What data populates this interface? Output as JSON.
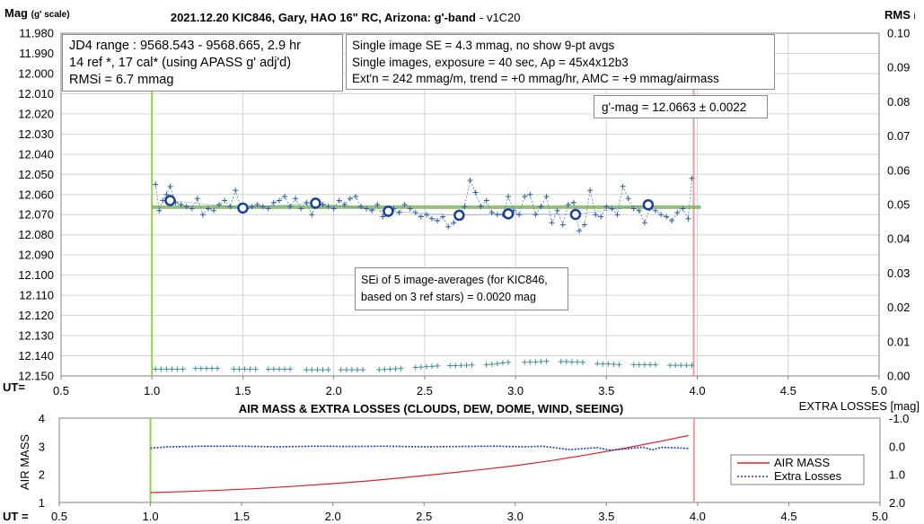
{
  "chart_data": [
    {
      "type": "scatter",
      "title": "2021.12.20 KIC846, Gary, HAO 16\" RC, Arizona: g'-band",
      "title_suffix": "- v1C20",
      "ylabel": "Mag",
      "ylabel_suffix": "(g' scale)",
      "y2label": "RMS",
      "y2label_suffix": "i",
      "xlabel": "UT=",
      "xlim": [
        0.5,
        5.0
      ],
      "ylim": [
        11.98,
        12.15
      ],
      "y_reversed": true,
      "y2lim": [
        0.0,
        0.1
      ],
      "grid": true,
      "x_ticks": [
        "0.5",
        "1.0",
        "1.5",
        "2.0",
        "2.5",
        "3.0",
        "3.5",
        "4.0",
        "4.5",
        "5.0"
      ],
      "y_ticks": [
        "11.980",
        "11.990",
        "12.000",
        "12.010",
        "12.020",
        "12.030",
        "12.040",
        "12.050",
        "12.060",
        "12.070",
        "12.080",
        "12.090",
        "12.100",
        "12.110",
        "12.120",
        "12.130",
        "12.140",
        "12.150"
      ],
      "y2_ticks": [
        "0.10",
        "0.09",
        "0.08",
        "0.07",
        "0.06",
        "0.05",
        "0.04",
        "0.03",
        "0.02",
        "0.01",
        "0.00"
      ],
      "vlines": [
        {
          "x": 1.0,
          "color": "#92d050"
        },
        {
          "x": 3.98,
          "color": "#e6a0a0"
        }
      ],
      "fit_line": {
        "x": [
          1.0,
          4.02
        ],
        "y": [
          12.0663,
          12.0663
        ],
        "color": "#70ad47"
      },
      "series": [
        {
          "name": "single images",
          "x": [
            1.02,
            1.04,
            1.06,
            1.08,
            1.1,
            1.13,
            1.16,
            1.19,
            1.22,
            1.25,
            1.28,
            1.31,
            1.34,
            1.37,
            1.4,
            1.43,
            1.46,
            1.49,
            1.52,
            1.55,
            1.58,
            1.61,
            1.64,
            1.67,
            1.7,
            1.73,
            1.76,
            1.79,
            1.82,
            1.85,
            1.88,
            1.91,
            1.94,
            1.97,
            2.0,
            2.03,
            2.06,
            2.09,
            2.12,
            2.15,
            2.18,
            2.21,
            2.24,
            2.27,
            2.3,
            2.33,
            2.36,
            2.39,
            2.42,
            2.45,
            2.48,
            2.51,
            2.54,
            2.57,
            2.6,
            2.63,
            2.66,
            2.69,
            2.72,
            2.75,
            2.78,
            2.81,
            2.84,
            2.87,
            2.9,
            2.93,
            2.96,
            2.99,
            3.02,
            3.05,
            3.08,
            3.11,
            3.14,
            3.17,
            3.2,
            3.23,
            3.26,
            3.29,
            3.32,
            3.35,
            3.38,
            3.41,
            3.44,
            3.47,
            3.5,
            3.53,
            3.56,
            3.59,
            3.62,
            3.65,
            3.68,
            3.71,
            3.74,
            3.77,
            3.8,
            3.83,
            3.86,
            3.89,
            3.92,
            3.95,
            3.97
          ],
          "y": [
            12.055,
            12.068,
            12.063,
            12.06,
            12.056,
            12.064,
            12.065,
            12.066,
            12.067,
            12.062,
            12.07,
            12.067,
            12.068,
            12.065,
            12.063,
            12.066,
            12.058,
            12.067,
            12.067,
            12.066,
            12.065,
            12.066,
            12.067,
            12.064,
            12.063,
            12.061,
            12.066,
            12.062,
            12.067,
            12.064,
            12.07,
            12.064,
            12.065,
            12.066,
            12.067,
            12.063,
            12.065,
            12.062,
            12.061,
            12.066,
            12.067,
            12.068,
            12.065,
            12.071,
            12.07,
            12.067,
            12.069,
            12.065,
            12.067,
            12.069,
            12.071,
            12.07,
            12.072,
            12.073,
            12.071,
            12.076,
            12.074,
            12.07,
            12.066,
            12.053,
            12.059,
            12.066,
            12.063,
            12.069,
            12.07,
            12.07,
            12.061,
            12.068,
            12.07,
            12.061,
            12.06,
            12.07,
            12.066,
            12.061,
            12.074,
            12.068,
            12.075,
            12.065,
            12.064,
            12.078,
            12.075,
            12.058,
            12.07,
            12.071,
            12.066,
            12.067,
            12.07,
            12.056,
            12.062,
            12.067,
            12.068,
            12.074,
            12.067,
            12.068,
            12.07,
            12.071,
            12.073,
            12.069,
            12.067,
            12.072,
            12.052
          ]
        },
        {
          "name": "9-pt avgs",
          "x": [
            1.1,
            1.5,
            1.9,
            2.3,
            2.69,
            2.96,
            3.33,
            3.73
          ],
          "y": [
            12.063,
            12.0667,
            12.0643,
            12.0683,
            12.0703,
            12.0696,
            12.0699,
            12.0651
          ]
        },
        {
          "name": "RMSi",
          "axis": "y2",
          "x": [
            1.02,
            1.05,
            1.08,
            1.11,
            1.14,
            1.17,
            1.24,
            1.27,
            1.3,
            1.33,
            1.36,
            1.45,
            1.48,
            1.51,
            1.54,
            1.57,
            1.64,
            1.67,
            1.7,
            1.73,
            1.76,
            1.85,
            1.88,
            1.91,
            1.94,
            1.97,
            2.04,
            2.07,
            2.1,
            2.13,
            2.16,
            2.25,
            2.28,
            2.31,
            2.34,
            2.37,
            2.45,
            2.48,
            2.51,
            2.54,
            2.57,
            2.64,
            2.67,
            2.7,
            2.73,
            2.76,
            2.84,
            2.87,
            2.9,
            2.93,
            2.96,
            3.05,
            3.08,
            3.11,
            3.14,
            3.17,
            3.25,
            3.28,
            3.31,
            3.34,
            3.37,
            3.45,
            3.48,
            3.51,
            3.54,
            3.57,
            3.65,
            3.68,
            3.71,
            3.74,
            3.77,
            3.85,
            3.88,
            3.91,
            3.94,
            3.97
          ],
          "y": [
            0.002,
            0.002,
            0.002,
            0.002,
            0.002,
            0.002,
            0.0022,
            0.0022,
            0.0022,
            0.0022,
            0.0022,
            0.002,
            0.002,
            0.002,
            0.002,
            0.002,
            0.002,
            0.002,
            0.002,
            0.002,
            0.002,
            0.0018,
            0.0018,
            0.0018,
            0.0018,
            0.0018,
            0.0018,
            0.0018,
            0.0018,
            0.0018,
            0.0018,
            0.0018,
            0.0019,
            0.002,
            0.0021,
            0.0022,
            0.0025,
            0.0026,
            0.0027,
            0.0028,
            0.0029,
            0.003,
            0.003,
            0.0031,
            0.0031,
            0.0032,
            0.0033,
            0.0034,
            0.0036,
            0.0038,
            0.004,
            0.004,
            0.0041,
            0.0041,
            0.0042,
            0.0043,
            0.0042,
            0.0042,
            0.0041,
            0.0041,
            0.004,
            0.0036,
            0.0035,
            0.0035,
            0.0034,
            0.0033,
            0.0033,
            0.0033,
            0.0033,
            0.0033,
            0.0033,
            0.0031,
            0.0031,
            0.0031,
            0.0031,
            0.0031
          ]
        }
      ],
      "annotations": {
        "box1": [
          "JD4 range : 9568.543 - 9568.665,  2.9  hr",
          "14 ref *, 17 cal* (using APASS g' adj'd)",
          "RMSi = 6.7 mmag"
        ],
        "box2": [
          "Single image SE = 4.3 mmag, no show  9-pt avgs",
          "Single images, exposure = 40 sec, Ap = 45x4x12b3",
          "Ext'n = 242 mmag/m, trend = +0 mmag/hr, AMC = +9 mmag/airmass"
        ],
        "box3": [
          "g'-mag = 12.0663 ± 0.0022"
        ],
        "box4": [
          "SEi of 5 image-averages (for KIC846,",
          "based on 3 ref stars) = 0.0020 mag"
        ]
      }
    },
    {
      "type": "line",
      "title": "AIR MASS & EXTRA LOSSES (CLOUDS, DEW, DOME, WIND, SEEING)",
      "ylabel": "AIR MASS",
      "y2label": "EXTRA LOSSES [mag]",
      "xlabel": "UT =",
      "xlim": [
        0.5,
        5.0
      ],
      "ylim": [
        1,
        4
      ],
      "y2lim": [
        -1.0,
        2.0
      ],
      "y2_reversed": true,
      "grid": false,
      "x_ticks": [
        "0.5",
        "1.0",
        "1.5",
        "2.0",
        "2.5",
        "3.0",
        "3.5",
        "4.0",
        "4.5",
        "5.0"
      ],
      "y_ticks": [
        "4",
        "3",
        "2",
        "1"
      ],
      "y2_ticks": [
        "-1.0",
        "0.0",
        "1.0",
        "2.0"
      ],
      "vlines": [
        {
          "x": 1.0,
          "color": "#92d050"
        },
        {
          "x": 3.98,
          "color": "#e6a0a0"
        }
      ],
      "legend": {
        "position": "right",
        "entries": [
          "AIR MASS",
          "Extra Losses"
        ]
      },
      "series": [
        {
          "name": "AIR MASS",
          "color": "#e02020",
          "x": [
            1.0,
            1.2,
            1.4,
            1.6,
            1.8,
            2.0,
            2.2,
            2.4,
            2.6,
            2.8,
            3.0,
            3.2,
            3.4,
            3.6,
            3.8,
            3.95
          ],
          "y": [
            1.35,
            1.39,
            1.44,
            1.5,
            1.58,
            1.67,
            1.77,
            1.89,
            2.02,
            2.16,
            2.31,
            2.49,
            2.7,
            2.93,
            3.18,
            3.38
          ]
        },
        {
          "name": "Extra Losses",
          "axis": "y2",
          "color": "#1f3fbf",
          "x": [
            1.0,
            1.1,
            1.3,
            1.5,
            1.7,
            1.9,
            2.1,
            2.3,
            2.5,
            2.7,
            2.9,
            3.05,
            3.15,
            3.3,
            3.45,
            3.52,
            3.6,
            3.7,
            3.75,
            3.8,
            3.9,
            3.95
          ],
          "y": [
            0.07,
            0.02,
            0.0,
            0.0,
            0.02,
            0.0,
            0.01,
            0.0,
            0.02,
            0.01,
            0.0,
            0.02,
            0.0,
            0.12,
            0.05,
            0.14,
            0.1,
            0.03,
            0.13,
            0.04,
            0.06,
            0.08
          ]
        }
      ]
    }
  ]
}
